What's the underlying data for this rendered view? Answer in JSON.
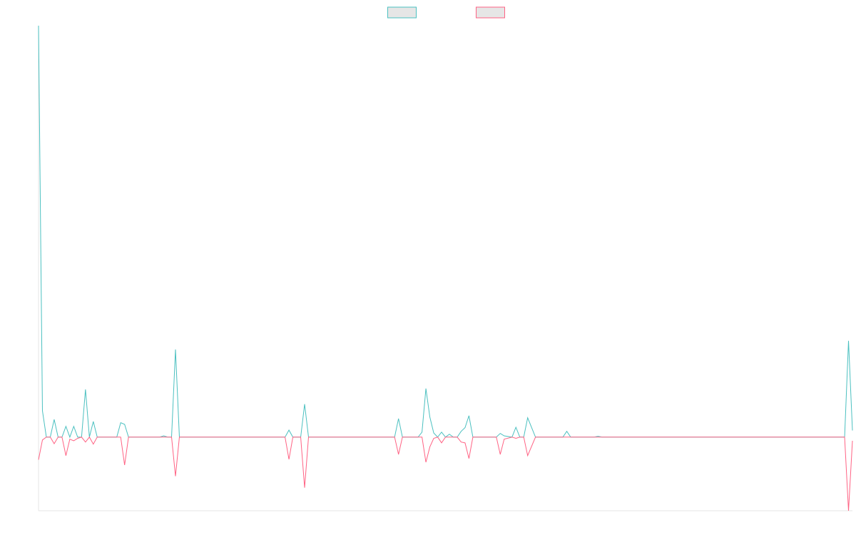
{
  "chart_data": {
    "type": "line",
    "legend": "top",
    "xlim": [
      0,
      208
    ],
    "ylim": [
      -17.9,
      100
    ],
    "x": [
      0,
      1,
      2,
      3,
      4,
      5,
      6,
      7,
      8,
      9,
      10,
      11,
      12,
      13,
      14,
      15,
      20,
      21,
      22,
      23,
      31,
      32,
      33,
      34,
      35,
      36,
      63,
      64,
      65,
      67,
      68,
      69,
      91,
      92,
      93,
      97,
      98,
      99,
      100,
      101,
      102,
      103,
      104,
      105,
      106,
      107,
      108,
      109,
      110,
      111,
      117,
      118,
      119,
      121,
      122,
      123,
      124,
      125,
      127,
      134,
      135,
      136,
      142,
      143,
      144,
      206,
      207,
      208
    ],
    "series": [
      {
        "color": "#4bc0c0",
        "values": [
          100,
          6.4,
          0,
          0,
          4.3,
          0,
          0,
          2.6,
          0,
          2.6,
          0,
          0,
          11.6,
          0,
          3.8,
          0,
          0,
          3.5,
          3.1,
          0,
          0,
          0.3,
          0,
          0,
          21.3,
          0,
          0,
          1.7,
          0,
          0,
          8,
          0,
          0,
          4.5,
          0,
          0,
          1.2,
          11.8,
          4.9,
          1,
          0,
          1.2,
          0,
          0.7,
          0,
          0,
          1.4,
          2.3,
          5.2,
          0,
          0,
          0.9,
          0.3,
          0,
          2.4,
          0,
          0,
          4.7,
          0,
          0,
          1.4,
          0,
          0,
          0.2,
          0,
          0,
          23.4,
          1.6
        ]
      },
      {
        "color": "#ff6384",
        "values": [
          -5.5,
          -0.7,
          0,
          0,
          -1.6,
          0,
          0,
          -4.5,
          -0.5,
          -0.9,
          -0.3,
          0,
          -1.2,
          0,
          -1.7,
          0,
          0,
          0,
          -6.8,
          0,
          0,
          0,
          0,
          0,
          -9.5,
          0,
          0,
          -5.4,
          0,
          0,
          -12.3,
          0,
          0,
          -4.2,
          0,
          0,
          0,
          -6.1,
          -2.4,
          -0.3,
          0,
          -1.4,
          0,
          0,
          0,
          0,
          -1.2,
          -1.4,
          -5.2,
          0,
          0,
          -4.2,
          -0.5,
          0,
          -0.3,
          0,
          0,
          -4.5,
          0,
          0,
          0,
          0,
          0,
          0,
          0,
          0,
          -17.9,
          -0.9
        ]
      }
    ]
  }
}
